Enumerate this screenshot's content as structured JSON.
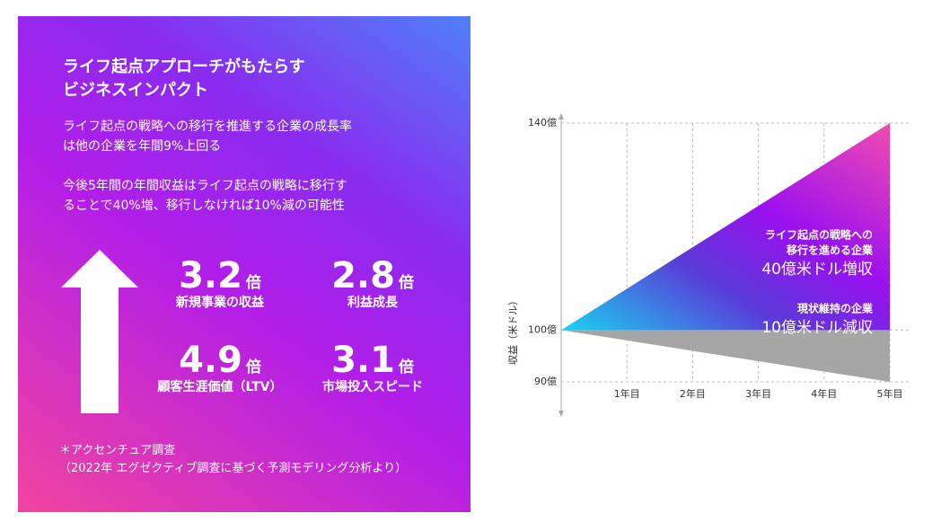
{
  "panel": {
    "title": [
      "ライフ起点アプローチがもたらす",
      "ビジネスインパクト"
    ],
    "paragraphs": [
      [
        "ライフ起点の戦略への移行を推進する企業の成長率",
        "は他の企業を年間9%上回る"
      ],
      [
        "今後5年間の年間収益はライフ起点の戦略に移行す",
        "ることで40%増、移行しなければ10%減の可能性"
      ]
    ],
    "stats": [
      {
        "value": 3.2,
        "unit": "倍",
        "label": "新規事業の収益"
      },
      {
        "value": 2.8,
        "unit": "倍",
        "label": "利益成長"
      },
      {
        "value": 4.9,
        "unit": "倍",
        "label": "顧客生涯価値（LTV）"
      },
      {
        "value": 3.1,
        "unit": "倍",
        "label": "市場投入スピード"
      }
    ],
    "note": [
      "＊アクセンチュア調査",
      "（2022年 エグゼクティブ調査に基づく予測モデリング分析より）"
    ]
  },
  "chart_data": {
    "type": "range-area",
    "ylabel": "収益（米ドル）",
    "categories": [
      null,
      "1年目",
      "2年目",
      "3年目",
      "4年目",
      "5年目"
    ],
    "series": [
      {
        "name": [
          "ライフ起点の戦略への",
          "移行を進める企業"
        ],
        "color": "#a100ff",
        "values": [
          100,
          108,
          116,
          124,
          132,
          140
        ],
        "annotation": "40億米ドル増収"
      },
      {
        "name": [
          "現状維持の企業"
        ],
        "color": "#a6a6a6",
        "values": [
          100,
          98,
          96,
          94,
          92,
          90
        ],
        "annotation": "10億米ドル減収"
      }
    ],
    "ylim": [
      90,
      140
    ],
    "yticks": [
      {
        "value": 90,
        "label": "90億"
      },
      {
        "value": 100,
        "label": "100億"
      },
      {
        "value": 140,
        "label": "140億"
      }
    ],
    "grid": true
  }
}
